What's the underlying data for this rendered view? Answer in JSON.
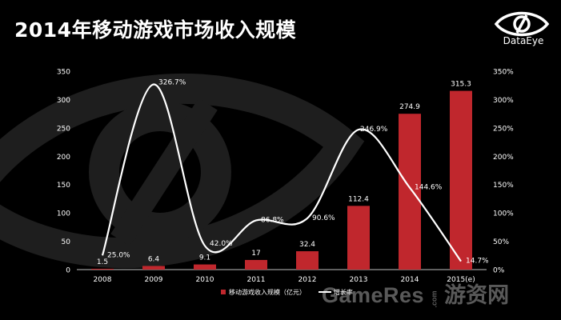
{
  "page": {
    "title": "2014年移动游戏市场收入规模",
    "logo_text": "DataEye",
    "watermark": {
      "brand": "GameRes",
      "domain": ".com",
      "cn": "游资网"
    },
    "colors": {
      "background": "#000000",
      "bar": "#c0272d",
      "line": "#ffffff",
      "text": "#ffffff"
    }
  },
  "chart_data": {
    "type": "bar",
    "categories": [
      "2008",
      "2009",
      "2010",
      "2011",
      "2012",
      "2013",
      "2014",
      "2015(e)"
    ],
    "series": [
      {
        "name": "移动游戏收入规模（亿元）",
        "type": "bar",
        "axis": "left",
        "values": [
          1.5,
          6.4,
          9.1,
          17,
          32.4,
          112.4,
          274.9,
          315.3
        ],
        "labels": [
          "1.5",
          "6.4",
          "9.1",
          "17",
          "32.4",
          "112.4",
          "274.9",
          "315.3"
        ]
      },
      {
        "name": "增长率",
        "type": "line",
        "axis": "right",
        "values": [
          25.0,
          326.7,
          42.0,
          86.8,
          90.6,
          246.9,
          144.6,
          14.7
        ],
        "labels": [
          "25.0%",
          "326.7%",
          "42.0%",
          "86.8%",
          "90.6%",
          "246.9%",
          "144.6%",
          "14.7%"
        ]
      }
    ],
    "y_left": {
      "min": 0,
      "max": 350,
      "ticks": [
        "0",
        "50",
        "100",
        "150",
        "200",
        "250",
        "300",
        "350"
      ]
    },
    "y_right": {
      "min": 0,
      "max": 350,
      "ticks": [
        "0%",
        "50%",
        "100%",
        "150%",
        "200%",
        "250%",
        "300%",
        "350%"
      ]
    },
    "grid": false,
    "legend": {
      "position": "bottom",
      "items": [
        "移动游戏收入规模（亿元）",
        "增长率"
      ]
    }
  }
}
